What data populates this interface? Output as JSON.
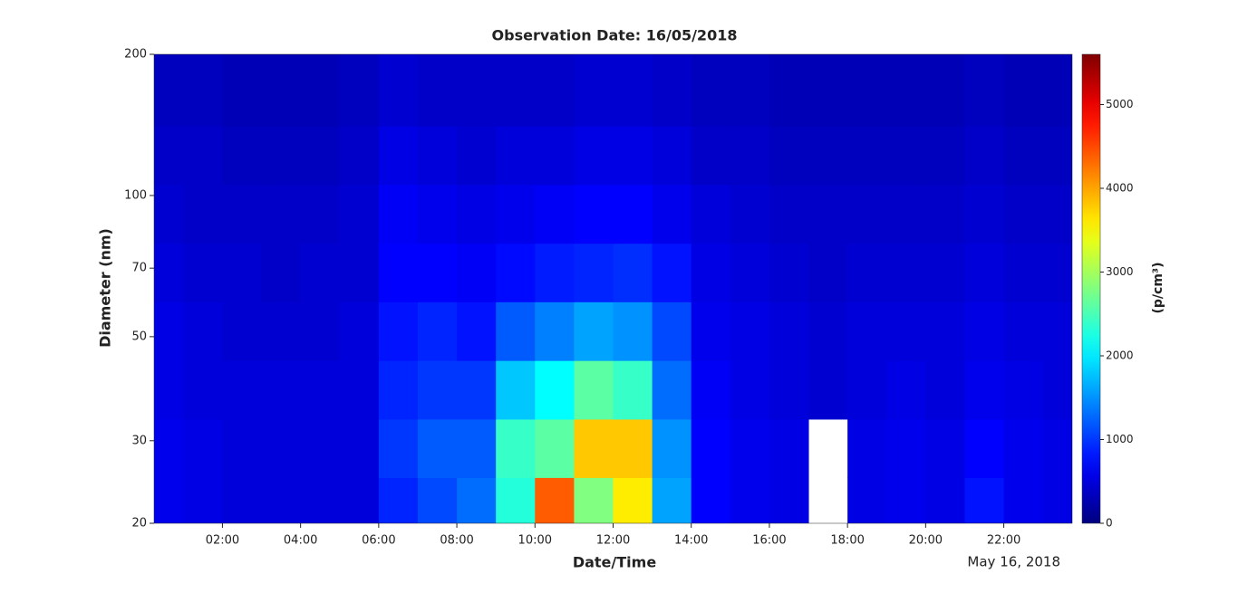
{
  "chart_data": {
    "type": "heatmap",
    "title": "Observation Date: 16/05/2018",
    "x_label": "Date/Time",
    "y_label": "Diameter (nm)",
    "colorbar_label": "(p/cm³)",
    "date_label": "May 16, 2018",
    "colormap": "jet",
    "log_y": true,
    "x": [
      0.5,
      1.5,
      2.5,
      3.5,
      4.5,
      5.5,
      6.5,
      7.5,
      8.5,
      9.5,
      10.5,
      11.5,
      12.5,
      13.5,
      14.5,
      15.5,
      16.5,
      17.5,
      18.5,
      19.5,
      20.5,
      21.5,
      22.5,
      23.5
    ],
    "y": [
      21.7,
      28.9,
      38.5,
      51.4,
      68.5,
      91.3,
      121.8,
      162.4
    ],
    "z": [
      [
        600,
        550,
        500,
        500,
        500,
        500,
        900,
        1100,
        1300,
        2300,
        4400,
        2800,
        3600,
        1600,
        700,
        600,
        550,
        null,
        550,
        600,
        550,
        800,
        600,
        550
      ],
      [
        600,
        550,
        500,
        500,
        500,
        500,
        1000,
        1200,
        1200,
        2400,
        2600,
        3800,
        3800,
        1500,
        700,
        600,
        550,
        null,
        550,
        600,
        550,
        700,
        600,
        550
      ],
      [
        550,
        500,
        500,
        500,
        500,
        500,
        900,
        1000,
        1000,
        1800,
        2100,
        2600,
        2400,
        1300,
        650,
        550,
        500,
        450,
        500,
        550,
        500,
        600,
        550,
        500
      ],
      [
        550,
        500,
        450,
        450,
        450,
        500,
        800,
        900,
        800,
        1200,
        1400,
        1600,
        1500,
        1100,
        600,
        550,
        500,
        450,
        500,
        500,
        500,
        550,
        500,
        500
      ],
      [
        500,
        450,
        450,
        400,
        450,
        450,
        700,
        700,
        650,
        750,
        850,
        900,
        950,
        800,
        550,
        500,
        450,
        400,
        450,
        450,
        450,
        500,
        450,
        450
      ],
      [
        450,
        400,
        400,
        400,
        400,
        450,
        650,
        600,
        550,
        600,
        650,
        700,
        700,
        600,
        500,
        450,
        400,
        400,
        400,
        400,
        400,
        450,
        400,
        400
      ],
      [
        400,
        400,
        350,
        350,
        350,
        400,
        550,
        500,
        450,
        500,
        500,
        550,
        550,
        500,
        400,
        400,
        350,
        350,
        350,
        350,
        350,
        400,
        350,
        350
      ],
      [
        350,
        350,
        300,
        300,
        300,
        350,
        450,
        400,
        400,
        400,
        400,
        450,
        450,
        400,
        350,
        350,
        300,
        300,
        300,
        300,
        300,
        350,
        300,
        300
      ]
    ],
    "xlim": [
      0.25,
      23.75
    ],
    "xticks": [
      {
        "value": 2,
        "label": "02:00"
      },
      {
        "value": 4,
        "label": "04:00"
      },
      {
        "value": 6,
        "label": "06:00"
      },
      {
        "value": 8,
        "label": "08:00"
      },
      {
        "value": 10,
        "label": "10:00"
      },
      {
        "value": 12,
        "label": "12:00"
      },
      {
        "value": 14,
        "label": "14:00"
      },
      {
        "value": 16,
        "label": "16:00"
      },
      {
        "value": 18,
        "label": "18:00"
      },
      {
        "value": 20,
        "label": "20:00"
      },
      {
        "value": 22,
        "label": "22:00"
      }
    ],
    "ylim": [
      20,
      200
    ],
    "yticks": [
      20,
      30,
      50,
      70,
      100,
      200
    ],
    "zlim": [
      0,
      5600
    ],
    "zticks": [
      0,
      1000,
      2000,
      3000,
      4000,
      5000
    ]
  }
}
